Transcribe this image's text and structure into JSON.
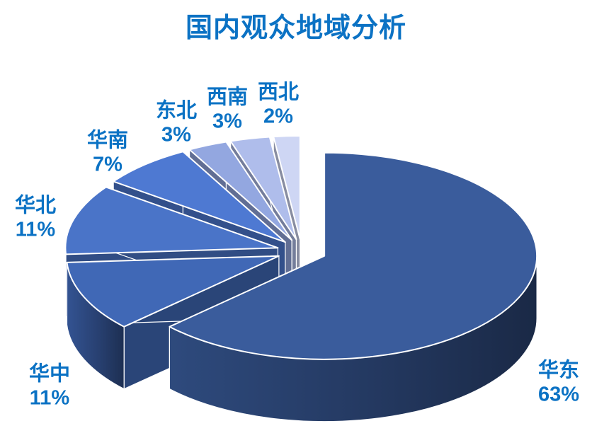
{
  "page": {
    "background": "#FFFFFF"
  },
  "chart_data": {
    "type": "pie",
    "style": "3d-exploded",
    "title": "国内观众地域分析",
    "title_color": "#0B72C4",
    "label_color": "#0B72C4",
    "unit": "%",
    "start_angle_deg": 0,
    "direction": "clockwise",
    "legend_position": "none",
    "categories": [
      "华东",
      "华中",
      "华北",
      "华南",
      "东北",
      "西南",
      "西北"
    ],
    "values": [
      63,
      11,
      11,
      7,
      3,
      3,
      2
    ],
    "colors": [
      "#3A5C9C",
      "#4068B6",
      "#4A74C8",
      "#4E79D2",
      "#93A7E0",
      "#AFBDEB",
      "#CED6F4"
    ],
    "keys": [
      "huadong",
      "huazhong",
      "huabei",
      "huanan",
      "dongbei",
      "xinan",
      "xibei"
    ]
  }
}
